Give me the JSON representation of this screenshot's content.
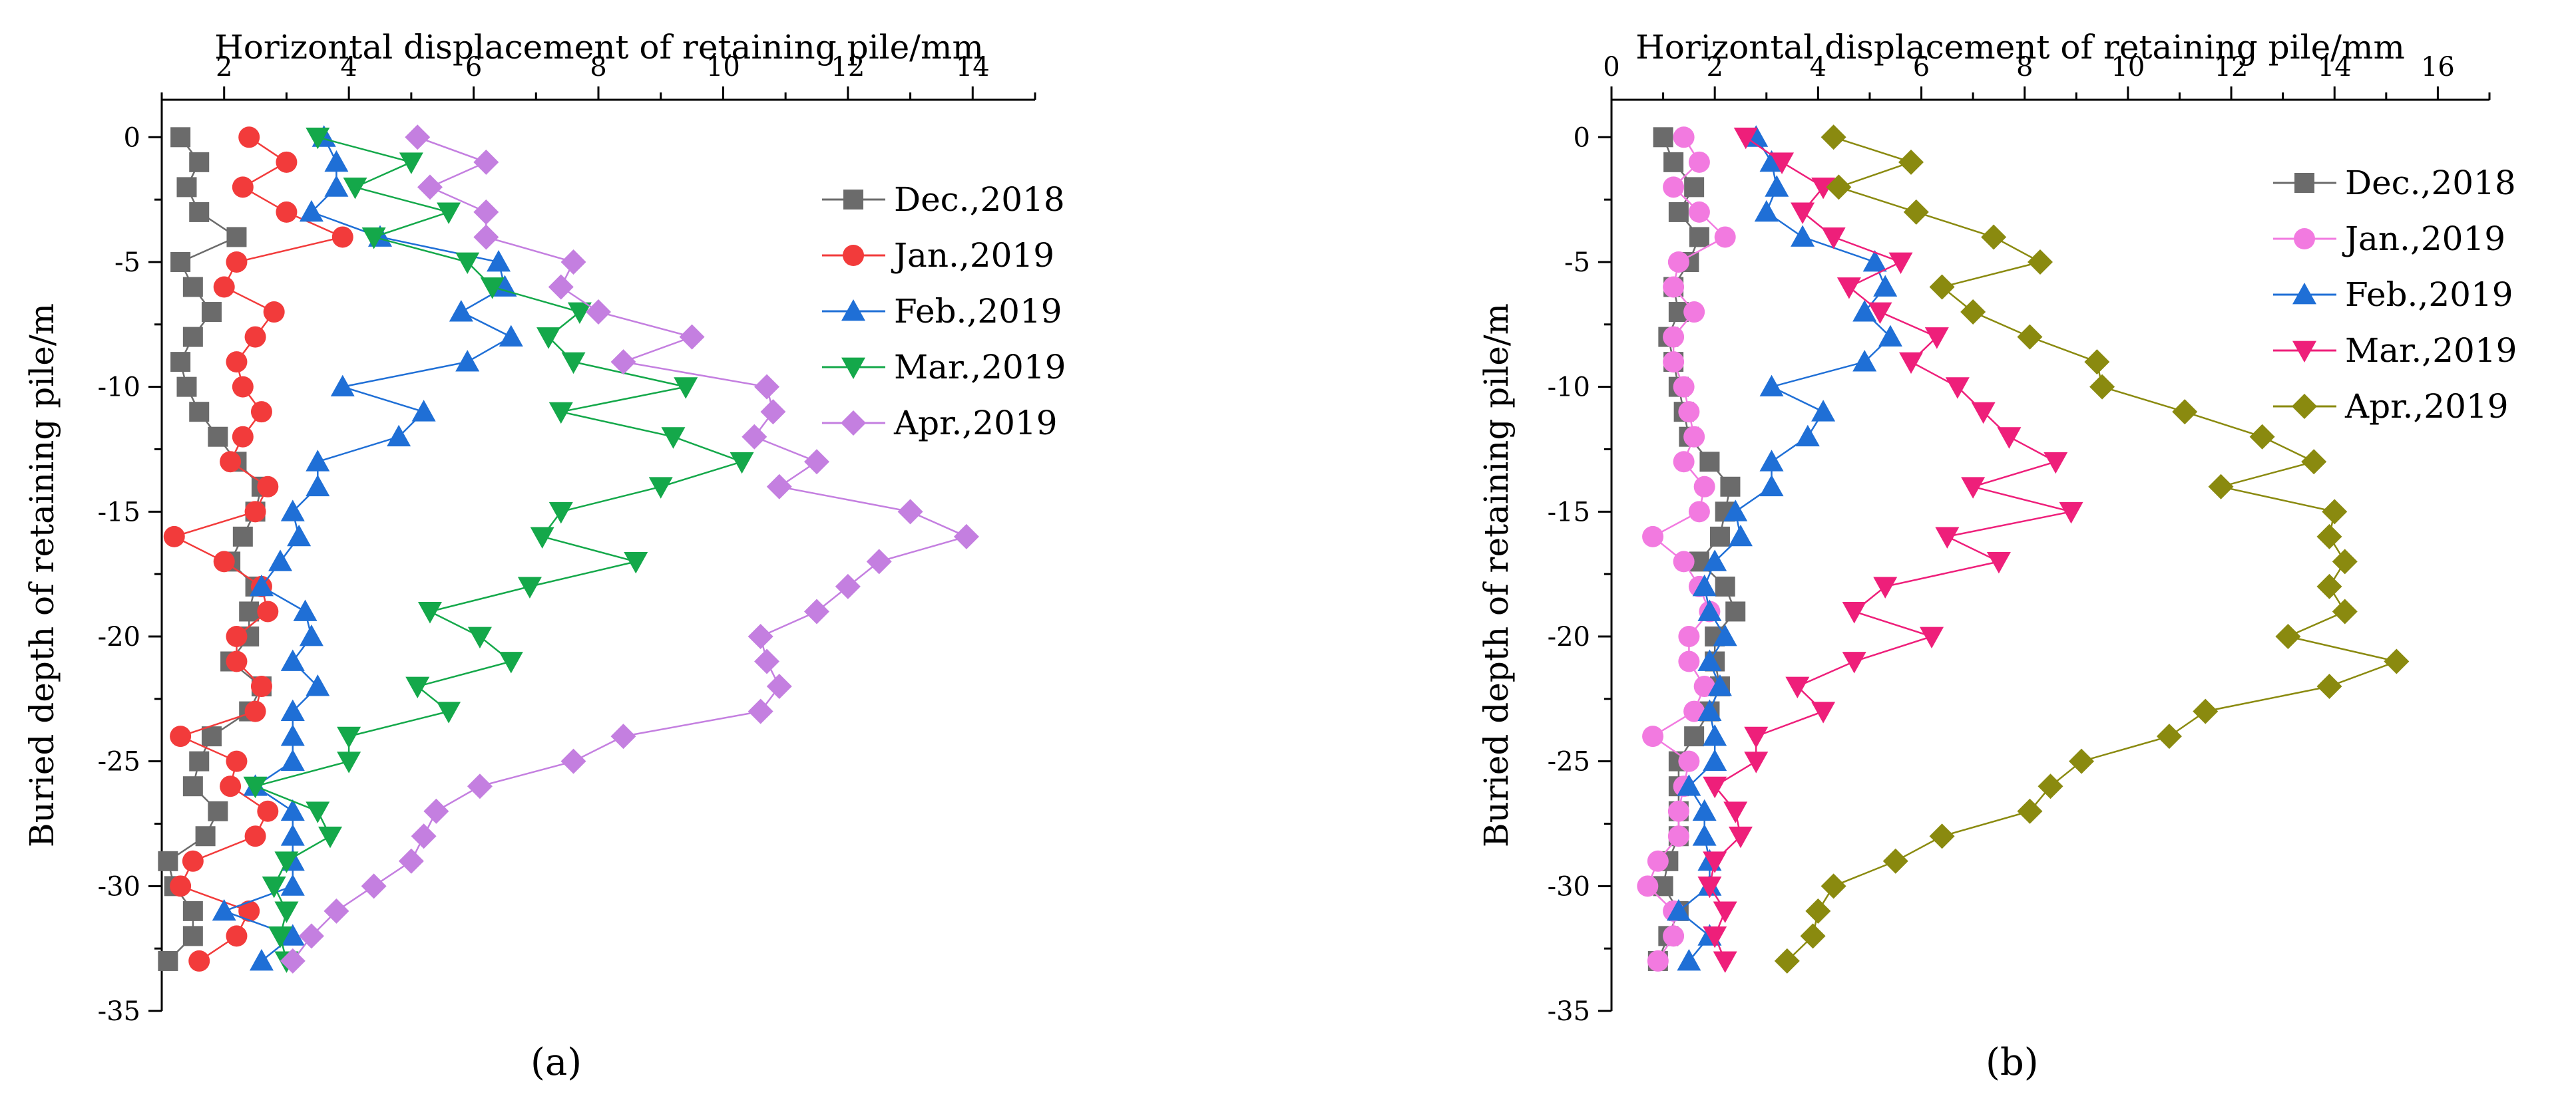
{
  "panels": [
    {
      "label": "(a)"
    },
    {
      "label": "(b)"
    }
  ],
  "chart_data": [
    {
      "type": "line",
      "xlabel": "Horizontal displacement of retaining pile/mm",
      "ylabel": "Buried depth of retaining pile/m",
      "xlim": [
        1.0,
        15.0
      ],
      "ylim": [
        -35,
        1.5
      ],
      "xticks": [
        2,
        4,
        6,
        8,
        10,
        12,
        14
      ],
      "yticks": [
        0,
        -5,
        -10,
        -15,
        -20,
        -25,
        -30,
        -35
      ],
      "x_axis_position": "top",
      "grid": false,
      "legend_position": "top-right",
      "y": [
        0,
        -1,
        -2,
        -3,
        -4,
        -5,
        -6,
        -7,
        -8,
        -9,
        -10,
        -11,
        -12,
        -13,
        -14,
        -15,
        -16,
        -17,
        -18,
        -19,
        -20,
        -21,
        -22,
        -23,
        -24,
        -25,
        -26,
        -27,
        -28,
        -29,
        -30,
        -31,
        -32,
        -33
      ],
      "series": [
        {
          "name": "Dec.,2018",
          "marker": "square",
          "color": "#6b6b6b",
          "x": [
            1.3,
            1.6,
            1.4,
            1.6,
            2.2,
            1.3,
            1.5,
            1.8,
            1.5,
            1.3,
            1.4,
            1.6,
            1.9,
            2.2,
            2.6,
            2.5,
            2.3,
            2.1,
            2.5,
            2.4,
            2.4,
            2.1,
            2.6,
            2.4,
            1.8,
            1.6,
            1.5,
            1.9,
            1.7,
            1.1,
            1.2,
            1.5,
            1.5,
            1.1
          ]
        },
        {
          "name": "Jan.,2019",
          "marker": "circle",
          "color": "#f23b3b",
          "x": [
            2.4,
            3.0,
            2.3,
            3.0,
            3.9,
            2.2,
            2.0,
            2.8,
            2.5,
            2.2,
            2.3,
            2.6,
            2.3,
            2.1,
            2.7,
            2.5,
            1.2,
            2.0,
            2.6,
            2.7,
            2.2,
            2.2,
            2.6,
            2.5,
            1.3,
            2.2,
            2.1,
            2.7,
            2.5,
            1.5,
            1.3,
            2.4,
            2.2,
            1.6
          ]
        },
        {
          "name": "Feb.,2019",
          "marker": "triangle-up",
          "color": "#1f6fd6",
          "x": [
            3.6,
            3.8,
            3.8,
            3.4,
            4.5,
            6.4,
            6.5,
            5.8,
            6.6,
            5.9,
            3.9,
            5.2,
            4.8,
            3.5,
            3.5,
            3.1,
            3.2,
            2.9,
            2.6,
            3.3,
            3.4,
            3.1,
            3.5,
            3.1,
            3.1,
            3.1,
            2.5,
            3.1,
            3.1,
            3.1,
            3.1,
            2.0,
            3.1,
            2.6
          ]
        },
        {
          "name": "Mar.,2019",
          "marker": "triangle-down",
          "color": "#14a84a",
          "x": [
            3.5,
            5.0,
            4.1,
            5.6,
            4.4,
            5.9,
            6.3,
            7.7,
            7.2,
            7.6,
            9.4,
            7.4,
            9.2,
            10.3,
            9.0,
            7.4,
            7.1,
            8.6,
            6.9,
            5.3,
            6.1,
            6.6,
            5.1,
            5.6,
            4.0,
            4.0,
            2.5,
            3.5,
            3.7,
            3.0,
            2.8,
            3.0,
            2.9,
            3.0
          ]
        },
        {
          "name": "Apr.,2019",
          "marker": "diamond",
          "color": "#c47fe0",
          "x": [
            5.1,
            6.2,
            5.3,
            6.2,
            6.2,
            7.6,
            7.4,
            8.0,
            9.5,
            8.4,
            10.7,
            10.8,
            10.5,
            11.5,
            10.9,
            13.0,
            13.9,
            12.5,
            12.0,
            11.5,
            10.6,
            10.7,
            10.9,
            10.6,
            8.4,
            7.6,
            6.1,
            5.4,
            5.2,
            5.0,
            4.4,
            3.8,
            3.4,
            3.1
          ]
        }
      ]
    },
    {
      "type": "line",
      "xlabel": "Horizontal displacement of retaining pile/mm",
      "ylabel": "Buried depth of retaining pile/m",
      "xlim": [
        0,
        17
      ],
      "ylim": [
        -35,
        1.5
      ],
      "xticks": [
        0,
        2,
        4,
        6,
        8,
        10,
        12,
        14,
        16
      ],
      "yticks": [
        0,
        -5,
        -10,
        -15,
        -20,
        -25,
        -30,
        -35
      ],
      "x_axis_position": "top",
      "grid": false,
      "legend_position": "top-right",
      "y": [
        0,
        -1,
        -2,
        -3,
        -4,
        -5,
        -6,
        -7,
        -8,
        -9,
        -10,
        -11,
        -12,
        -13,
        -14,
        -15,
        -16,
        -17,
        -18,
        -19,
        -20,
        -21,
        -22,
        -23,
        -24,
        -25,
        -26,
        -27,
        -28,
        -29,
        -30,
        -31,
        -32,
        -33
      ],
      "series": [
        {
          "name": "Dec.,2018",
          "marker": "square",
          "color": "#6b6b6b",
          "x": [
            1.0,
            1.2,
            1.6,
            1.3,
            1.7,
            1.5,
            1.2,
            1.3,
            1.1,
            1.2,
            1.3,
            1.4,
            1.5,
            1.9,
            2.3,
            2.2,
            2.1,
            1.7,
            2.2,
            2.4,
            2.0,
            2.0,
            2.1,
            1.9,
            1.6,
            1.3,
            1.3,
            1.3,
            1.3,
            1.1,
            1.0,
            1.3,
            1.1,
            0.9
          ]
        },
        {
          "name": "Jan.,2019",
          "marker": "circle",
          "color": "#f27ae0",
          "x": [
            1.4,
            1.7,
            1.2,
            1.7,
            2.2,
            1.3,
            1.2,
            1.6,
            1.2,
            1.2,
            1.4,
            1.5,
            1.6,
            1.4,
            1.8,
            1.7,
            0.8,
            1.4,
            1.7,
            1.9,
            1.5,
            1.5,
            1.8,
            1.6,
            0.8,
            1.5,
            1.4,
            1.3,
            1.3,
            0.9,
            0.7,
            1.2,
            1.2,
            0.9
          ]
        },
        {
          "name": "Feb.,2019",
          "marker": "triangle-up",
          "color": "#1f6fd6",
          "x": [
            2.8,
            3.1,
            3.2,
            3.0,
            3.7,
            5.1,
            5.3,
            4.9,
            5.4,
            4.9,
            3.1,
            4.1,
            3.8,
            3.1,
            3.1,
            2.4,
            2.5,
            2.0,
            1.8,
            1.9,
            2.2,
            1.9,
            2.1,
            1.9,
            2.0,
            2.0,
            1.5,
            1.8,
            1.8,
            1.9,
            1.9,
            1.3,
            1.9,
            1.5
          ]
        },
        {
          "name": "Mar.,2019",
          "marker": "triangle-down",
          "color": "#ee1f7a",
          "x": [
            2.6,
            3.3,
            4.1,
            3.7,
            4.3,
            5.6,
            4.6,
            5.2,
            6.3,
            5.8,
            6.7,
            7.2,
            7.7,
            8.6,
            7.0,
            8.9,
            6.5,
            7.5,
            5.3,
            4.7,
            6.2,
            4.7,
            3.6,
            4.1,
            2.8,
            2.8,
            2.0,
            2.4,
            2.5,
            2.0,
            1.9,
            2.2,
            2.0,
            2.2
          ]
        },
        {
          "name": "Apr.,2019",
          "marker": "diamond",
          "color": "#8a8a0f",
          "x": [
            4.3,
            5.8,
            4.4,
            5.9,
            7.4,
            8.3,
            6.4,
            7.0,
            8.1,
            9.4,
            9.5,
            11.1,
            12.6,
            13.6,
            11.8,
            14.0,
            13.9,
            14.2,
            13.9,
            14.2,
            13.1,
            15.2,
            13.9,
            11.5,
            10.8,
            9.1,
            8.5,
            8.1,
            6.4,
            5.5,
            4.3,
            4.0,
            3.9,
            3.4
          ]
        }
      ]
    }
  ]
}
